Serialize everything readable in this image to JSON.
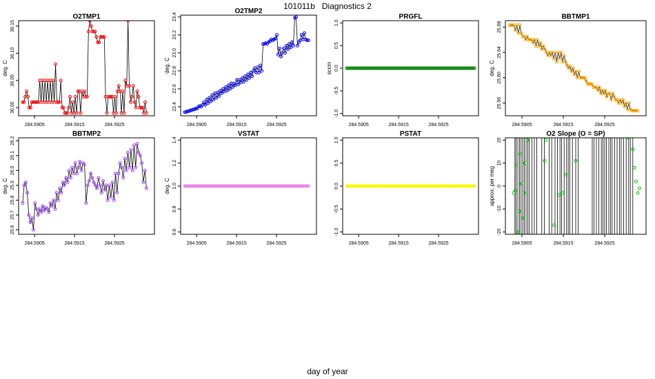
{
  "page": {
    "title": "101011b   Diagnostics 2",
    "xlabel": "day of year"
  },
  "chart_data": [
    {
      "type": "line",
      "id": "o2tmp1",
      "title": "O2TMP1",
      "ylabel": "deg. C",
      "color": "#ff0000",
      "xlim": [
        284.5901,
        284.5935
      ],
      "ylim": [
        35.985,
        36.16
      ],
      "xticks": [
        "284.5905",
        "284.5915",
        "284.5925"
      ],
      "xtick_values": [
        284.5905,
        284.5915,
        284.5925
      ],
      "yticks": [
        "36.00",
        "36.05",
        "36.10",
        "36.15"
      ],
      "ytick_values": [
        36.0,
        36.05,
        36.1,
        36.15
      ],
      "x_start": 284.5902,
      "x_end": 284.5933,
      "series": [
        {
          "values": [
            36.01,
            36.01,
            36.02,
            36.03,
            36.02,
            36.0,
            36.0,
            36.01,
            36.01,
            36.01,
            36.01,
            36.01,
            36.01,
            36.05,
            36.01,
            36.05,
            36.01,
            36.05,
            36.01,
            36.05,
            36.01,
            36.05,
            36.01,
            36.05,
            36.01,
            36.08,
            36.01,
            36.01,
            36.01,
            36.05,
            36.0,
            36.0,
            35.99,
            35.99,
            35.99,
            36.0,
            36.02,
            35.99,
            36.01,
            35.99,
            36.02,
            35.99,
            36.03,
            36.03,
            35.99,
            36.03,
            36.02,
            36.03,
            36.02,
            36.02,
            36.14,
            36.16,
            36.15,
            36.14,
            36.14,
            36.14,
            36.13,
            36.12,
            36.12,
            36.13,
            36.13,
            36.13,
            36.13,
            36.02,
            35.99,
            36.02,
            36.02,
            36.02,
            36.02,
            35.99,
            36.02,
            35.99,
            36.03,
            36.04,
            36.03,
            35.99,
            36.03,
            35.99,
            36.05,
            36.04,
            36.16,
            36.04,
            36.01,
            36.02,
            36.04,
            36.01,
            36.0,
            36.03,
            36.02,
            36.0,
            36.0,
            36.0,
            35.99,
            36.01,
            35.99
          ]
        }
      ]
    },
    {
      "type": "line",
      "id": "o2tmp2",
      "title": "O2TMP2",
      "ylabel": "deg. C",
      "color": "#0000ff",
      "xlim": [
        284.5901,
        284.5935
      ],
      "ylim": [
        22.3,
        23.42
      ],
      "xticks": [
        "284.5905",
        "284.5915",
        "284.5925"
      ],
      "xtick_values": [
        284.5905,
        284.5915,
        284.5925
      ],
      "yticks": [
        "22.4",
        "22.6",
        "22.8",
        "23.0",
        "23.2",
        "23.4"
      ],
      "ytick_values": [
        22.4,
        22.6,
        22.8,
        23.0,
        23.2,
        23.4
      ],
      "x_start": 284.5902,
      "x_end": 284.5933,
      "series": [
        {
          "values": [
            22.34,
            22.34,
            22.35,
            22.35,
            22.36,
            22.36,
            22.37,
            22.37,
            22.38,
            22.38,
            22.4,
            22.41,
            22.4,
            22.42,
            22.45,
            22.42,
            22.48,
            22.44,
            22.5,
            22.46,
            22.53,
            22.48,
            22.55,
            22.5,
            22.56,
            22.52,
            22.58,
            22.55,
            22.6,
            22.57,
            22.62,
            22.58,
            22.64,
            22.6,
            22.66,
            22.62,
            22.66,
            22.64,
            22.7,
            22.65,
            22.7,
            22.67,
            22.72,
            22.68,
            22.74,
            22.7,
            22.76,
            22.72,
            22.78,
            22.74,
            22.8,
            22.83,
            22.78,
            22.84,
            22.78,
            22.86,
            22.8,
            23.1,
            23.1,
            23.11,
            23.1,
            23.12,
            23.13,
            23.15,
            23.14,
            23.15,
            23.16,
            23.2,
            22.98,
            23.05,
            22.96,
            23.0,
            23.05,
            23.0,
            23.08,
            23.04,
            23.1,
            23.06,
            23.12,
            23.08,
            23.39,
            23.4,
            23.08,
            23.12,
            23.14,
            23.2,
            23.15,
            23.22,
            23.15,
            23.14,
            23.14
          ]
        }
      ]
    },
    {
      "type": "line",
      "id": "prgfl",
      "title": "PRGFL",
      "ylabel": "sccm",
      "color": "#008000",
      "xlim": [
        284.5901,
        284.5935
      ],
      "ylim": [
        -1.05,
        1.05
      ],
      "xticks": [
        "284.5905",
        "284.5915",
        "284.5925"
      ],
      "xtick_values": [
        284.5905,
        284.5915,
        284.5925
      ],
      "yticks": [
        "-1.0",
        "-0.5",
        "0.0",
        "0.5",
        "1.0"
      ],
      "ytick_values": [
        -1.0,
        -0.5,
        0.0,
        0.5,
        1.0
      ],
      "x_start": 284.5902,
      "x_end": 284.5934,
      "constant": 0.0,
      "n_points": 110
    },
    {
      "type": "line",
      "id": "bbtmp1",
      "title": "BBTMP1",
      "ylabel": "deg. C",
      "color": "#ffa500",
      "xlim": [
        284.5901,
        284.5935
      ],
      "ylim": [
        25.54,
        25.69
      ],
      "xticks": [
        "284.5905",
        "284.5915",
        "284.5925"
      ],
      "xtick_values": [
        284.5905,
        284.5915,
        284.5925
      ],
      "yticks": [
        "25.56",
        "25.60",
        "25.64",
        "25.68"
      ],
      "ytick_values": [
        25.56,
        25.6,
        25.64,
        25.68
      ],
      "x_start": 284.5902,
      "x_end": 284.5933,
      "series": [
        {
          "values": [
            25.683,
            25.683,
            25.683,
            25.683,
            25.675,
            25.683,
            25.67,
            25.683,
            25.67,
            25.665,
            25.665,
            25.66,
            25.665,
            25.66,
            25.66,
            25.66,
            25.655,
            25.66,
            25.65,
            25.66,
            25.65,
            25.655,
            25.645,
            25.65,
            25.645,
            25.64,
            25.635,
            25.64,
            25.635,
            25.64,
            25.63,
            25.64,
            25.625,
            25.64,
            25.63,
            25.64,
            25.625,
            25.635,
            25.625,
            25.62,
            25.615,
            25.618,
            25.61,
            25.615,
            25.605,
            25.61,
            25.6,
            25.61,
            25.6,
            25.6,
            25.6,
            25.6,
            25.595,
            25.59,
            25.59,
            25.59,
            25.59,
            25.585,
            25.585,
            25.585,
            25.58,
            25.585,
            25.575,
            25.58,
            25.575,
            25.58,
            25.57,
            25.575,
            25.575,
            25.565,
            25.575,
            25.57,
            25.565,
            25.565,
            25.56,
            25.565,
            25.56,
            25.565,
            25.555,
            25.56,
            25.55,
            25.56,
            25.55,
            25.548,
            25.548,
            25.548,
            25.548,
            25.548
          ]
        }
      ]
    },
    {
      "type": "line",
      "id": "bbtmp2",
      "title": "BBTMP2",
      "ylabel": "deg. C",
      "color": "#a040ff",
      "xlim": [
        284.5901,
        284.5935
      ],
      "ylim": [
        25.57,
        26.22
      ],
      "xticks": [
        "284.5905",
        "284.5915",
        "284.5925"
      ],
      "xtick_values": [
        284.5905,
        284.5915,
        284.5925
      ],
      "yticks": [
        "25.6",
        "25.7",
        "25.8",
        "25.9",
        "26.0",
        "26.1",
        "26.2"
      ],
      "ytick_values": [
        25.6,
        25.7,
        25.8,
        25.9,
        26.0,
        26.1,
        26.2
      ],
      "x_start": 284.5902,
      "x_end": 284.5933,
      "series": [
        {
          "values": [
            25.78,
            25.9,
            25.92,
            25.85,
            25.7,
            25.65,
            25.68,
            25.6,
            25.78,
            25.74,
            25.7,
            25.74,
            25.72,
            25.76,
            25.73,
            25.75,
            25.74,
            25.72,
            25.78,
            25.76,
            25.8,
            25.74,
            25.85,
            25.8,
            25.88,
            25.85,
            25.92,
            25.9,
            25.95,
            25.92,
            26.0,
            25.95,
            26.02,
            25.98,
            26.05,
            25.98,
            26.02,
            26.06,
            26.0,
            26.05,
            26.04,
            25.78,
            25.9,
            25.93,
            25.98,
            25.95,
            25.92,
            25.9,
            25.88,
            25.95,
            25.9,
            25.85,
            25.93,
            25.87,
            25.9,
            25.8,
            25.9,
            25.82,
            25.92,
            25.8,
            25.98,
            25.85,
            25.98,
            26.05,
            26.02,
            25.95,
            26.08,
            26.0,
            26.12,
            26.02,
            26.14,
            26.0,
            26.17,
            26.02,
            26.18,
            26.12,
            26.1,
            26.05,
            25.92,
            26.0,
            25.88
          ]
        }
      ]
    },
    {
      "type": "line",
      "id": "vstat",
      "title": "VSTAT",
      "ylabel": "deg. C",
      "color": "#ee82ee",
      "xlim": [
        284.5901,
        284.5935
      ],
      "ylim": [
        0.58,
        1.42
      ],
      "xticks": [
        "284.5905",
        "284.5915",
        "284.5925"
      ],
      "xtick_values": [
        284.5905,
        284.5915,
        284.5925
      ],
      "yticks": [
        "0.6",
        "0.8",
        "1.0",
        "1.2",
        "1.4"
      ],
      "ytick_values": [
        0.6,
        0.8,
        1.0,
        1.2,
        1.4
      ],
      "x_start": 284.5902,
      "x_end": 284.5933,
      "constant": 1.0,
      "n_points": 110
    },
    {
      "type": "line",
      "id": "pstat",
      "title": "PSTAT",
      "ylabel": "",
      "color": "#ffff00",
      "xlim": [
        284.5901,
        284.5935
      ],
      "ylim": [
        -1.05,
        1.05
      ],
      "xticks": [
        "284.5905",
        "284.5915",
        "284.5925"
      ],
      "xtick_values": [
        284.5905,
        284.5915,
        284.5925
      ],
      "yticks": [
        "-1.0",
        "-0.5",
        "0.0",
        "0.5",
        "1.0"
      ],
      "ytick_values": [
        -1.0,
        -0.5,
        0.0,
        0.5,
        1.0
      ],
      "x_start": 284.5902,
      "x_end": 284.5934,
      "constant": 0.0,
      "n_points": 110
    },
    {
      "type": "scatter",
      "id": "o2slope",
      "title": "O2 Slope (O = SP)",
      "ylabel": "approx. per meg",
      "color": "#00c000",
      "xlim": [
        284.5901,
        284.5935
      ],
      "ylim": [
        -21,
        21
      ],
      "xticks": [
        "284.5905",
        "284.5915",
        "284.5925"
      ],
      "xtick_values": [
        284.5905,
        284.5915,
        284.5925
      ],
      "yticks": [
        "-20",
        "-10",
        "0",
        "10",
        "20"
      ],
      "ytick_values": [
        -20,
        -10,
        0,
        10,
        20
      ],
      "vlines": [
        284.59033,
        284.59036,
        284.5904,
        284.59044,
        284.59048,
        284.59052,
        284.59056,
        284.5906,
        284.59064,
        284.59068,
        284.59074,
        284.5908,
        284.59086,
        284.59098,
        284.59104,
        284.59116,
        284.59122,
        284.5913,
        284.59136,
        284.59142,
        284.59146,
        284.59152,
        284.59158,
        284.59162,
        284.59166,
        284.59172,
        284.5918,
        284.59186,
        284.5922,
        284.59224,
        284.5923,
        284.59236,
        284.59242,
        284.59246,
        284.5925,
        284.59254,
        284.5926,
        284.59264,
        284.59268,
        284.59274,
        284.5928,
        284.59286,
        284.5929,
        284.59296,
        284.59302,
        284.59308,
        284.59312,
        284.59318
      ],
      "points": [
        [
          284.5903,
          -3
        ],
        [
          284.59034,
          -2
        ],
        [
          284.59037,
          9
        ],
        [
          284.5904,
          -20
        ],
        [
          284.59043,
          -11
        ],
        [
          284.59046,
          14
        ],
        [
          284.59049,
          1
        ],
        [
          284.59052,
          -14
        ],
        [
          284.59055,
          -3
        ],
        [
          284.59057,
          10
        ],
        [
          284.59063,
          20
        ],
        [
          284.59105,
          11
        ],
        [
          284.59108,
          20
        ],
        [
          284.59128,
          -17
        ],
        [
          284.5914,
          -4
        ],
        [
          284.59148,
          -3
        ],
        [
          284.59156,
          5
        ],
        [
          284.5918,
          11
        ],
        [
          284.59306,
          21
        ],
        [
          284.59318,
          16
        ],
        [
          284.59322,
          8
        ],
        [
          284.59326,
          2
        ],
        [
          284.5933,
          -3
        ],
        [
          284.59334,
          -1
        ]
      ]
    }
  ]
}
